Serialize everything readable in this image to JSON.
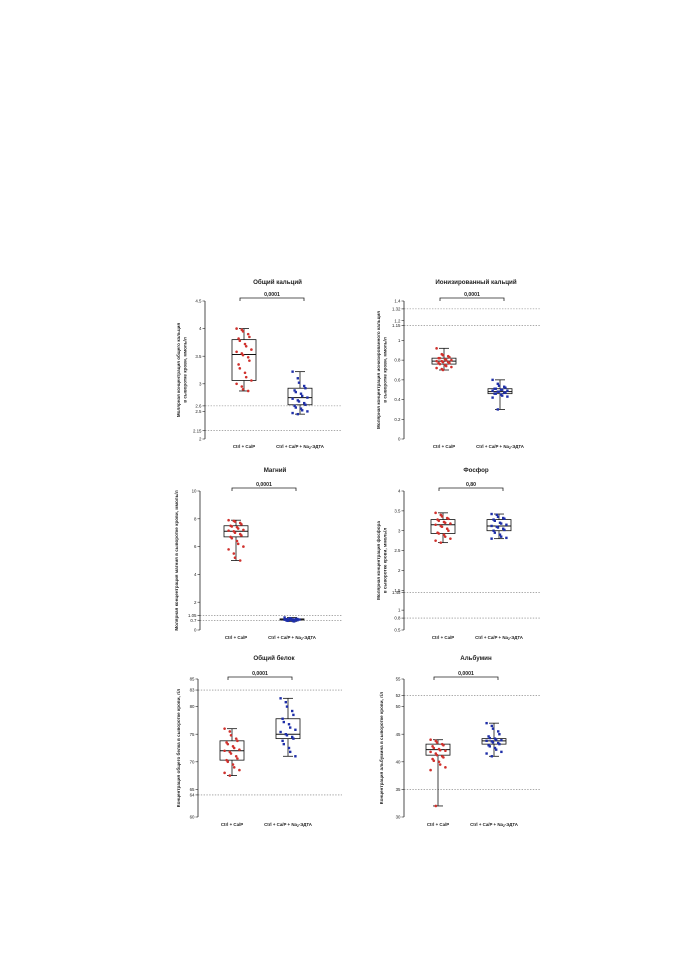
{
  "chart_data": [
    {
      "type": "box",
      "title": "Общий кальций",
      "ylabel": "Молярная концентрация общего кальция\nв сыворотке крови, ммоль/л",
      "ylim": [
        2.0,
        4.5
      ],
      "yticks": [
        2.0,
        2.15,
        2.5,
        2.6,
        3.0,
        3.5,
        4.0,
        4.5
      ],
      "reference_lines": [
        2.15,
        2.6
      ],
      "categories": [
        "Ctrl + Ca/P",
        "Ctrl + Ca/P + Na2-ЭДТА"
      ],
      "significance": "0,0001",
      "series": [
        {
          "color": "#d0312d",
          "marker": "circle",
          "box": {
            "whisker_low": 2.87,
            "q1": 3.06,
            "median": 3.53,
            "q3": 3.8,
            "whisker_high": 4.0
          },
          "points": [
            4.0,
            3.98,
            3.95,
            3.9,
            3.85,
            3.82,
            3.78,
            3.72,
            3.68,
            3.62,
            3.58,
            3.55,
            3.52,
            3.48,
            3.42,
            3.35,
            3.28,
            3.2,
            3.12,
            3.06,
            3.0,
            2.95,
            2.9,
            2.87
          ]
        },
        {
          "color": "#1f2fa8",
          "marker": "square",
          "box": {
            "whisker_low": 2.45,
            "q1": 2.62,
            "median": 2.75,
            "q3": 2.92,
            "whisker_high": 3.22
          },
          "points": [
            3.22,
            3.1,
            3.02,
            2.96,
            2.92,
            2.88,
            2.85,
            2.82,
            2.78,
            2.75,
            2.73,
            2.7,
            2.68,
            2.65,
            2.62,
            2.6,
            2.57,
            2.55,
            2.52,
            2.5,
            2.47,
            2.45
          ]
        }
      ]
    },
    {
      "type": "box",
      "title": "Ионизированный кальций",
      "ylabel": "Молярная концентрация ионизированного кальция\nв сыворотке крови, ммоль/л",
      "ylim": [
        0.0,
        1.4
      ],
      "yticks": [
        0.0,
        0.2,
        0.4,
        0.6,
        0.8,
        1.0,
        1.15,
        1.2,
        1.32,
        1.4
      ],
      "reference_lines": [
        1.15,
        1.32
      ],
      "categories": [
        "Ctrl + Ca/P",
        "Ctrl + Ca/P + Na2-ЭДТА"
      ],
      "significance": "0,0001",
      "series": [
        {
          "color": "#d0312d",
          "marker": "circle",
          "box": {
            "whisker_low": 0.7,
            "q1": 0.76,
            "median": 0.79,
            "q3": 0.82,
            "whisker_high": 0.92
          },
          "points": [
            0.92,
            0.86,
            0.85,
            0.84,
            0.83,
            0.82,
            0.82,
            0.81,
            0.8,
            0.8,
            0.79,
            0.79,
            0.78,
            0.78,
            0.77,
            0.77,
            0.76,
            0.75,
            0.74,
            0.73,
            0.72,
            0.71,
            0.7
          ]
        },
        {
          "color": "#1f2fa8",
          "marker": "square",
          "box": {
            "whisker_low": 0.3,
            "q1": 0.46,
            "median": 0.48,
            "q3": 0.51,
            "whisker_high": 0.6
          },
          "points": [
            0.6,
            0.56,
            0.54,
            0.53,
            0.52,
            0.51,
            0.51,
            0.5,
            0.5,
            0.49,
            0.49,
            0.48,
            0.48,
            0.47,
            0.47,
            0.46,
            0.46,
            0.45,
            0.44,
            0.43,
            0.42,
            0.3
          ]
        }
      ]
    },
    {
      "type": "box",
      "title": "Магний",
      "ylabel": "Молярная концентрация магния в сыворотке крови, ммоль/л",
      "ylim": [
        0,
        10
      ],
      "yticks": [
        0,
        0.7,
        1.05,
        2,
        4,
        6,
        8,
        10
      ],
      "reference_lines": [
        0.7,
        1.05
      ],
      "categories": [
        "Ctrl + Ca/P",
        "Ctrl + Ca/P + Na2-ЭДТА"
      ],
      "significance": "0,0001",
      "series": [
        {
          "color": "#d0312d",
          "marker": "circle",
          "box": {
            "whisker_low": 5.0,
            "q1": 6.7,
            "median": 7.1,
            "q3": 7.5,
            "whisker_high": 7.9
          },
          "points": [
            7.9,
            7.85,
            7.8,
            7.7,
            7.6,
            7.5,
            7.45,
            7.4,
            7.3,
            7.2,
            7.15,
            7.1,
            7.0,
            6.9,
            6.8,
            6.7,
            6.6,
            6.4,
            6.2,
            6.0,
            5.8,
            5.5,
            5.2,
            5.0
          ]
        },
        {
          "color": "#1f2fa8",
          "marker": "square",
          "box": {
            "whisker_low": 0.62,
            "q1": 0.72,
            "median": 0.75,
            "q3": 0.8,
            "whisker_high": 0.9
          },
          "points": [
            0.9,
            0.85,
            0.82,
            0.8,
            0.79,
            0.78,
            0.77,
            0.76,
            0.75,
            0.75,
            0.74,
            0.73,
            0.72,
            0.71,
            0.7,
            0.68,
            0.66,
            0.64,
            0.62
          ]
        }
      ]
    },
    {
      "type": "box",
      "title": "Фосфор",
      "ylabel": "Молярная концентрация фосфора\nв сыворотке крови, ммоль/л",
      "ylim": [
        0.5,
        4.0
      ],
      "yticks": [
        0.5,
        0.8,
        1.0,
        1.45,
        1.5,
        2.0,
        2.5,
        3.0,
        3.5,
        4.0
      ],
      "reference_lines": [
        0.8,
        1.45
      ],
      "categories": [
        "Ctrl + Ca/P",
        "Ctrl + Ca/P + Na2-ЭДТА"
      ],
      "significance": "0,80",
      "series": [
        {
          "color": "#d0312d",
          "marker": "circle",
          "box": {
            "whisker_low": 2.7,
            "q1": 2.93,
            "median": 3.15,
            "q3": 3.28,
            "whisker_high": 3.45
          },
          "points": [
            3.45,
            3.4,
            3.36,
            3.32,
            3.3,
            3.28,
            3.25,
            3.22,
            3.2,
            3.18,
            3.15,
            3.12,
            3.1,
            3.05,
            3.0,
            2.95,
            2.93,
            2.9,
            2.85,
            2.8,
            2.75,
            2.7
          ]
        },
        {
          "color": "#1f2fa8",
          "marker": "square",
          "box": {
            "whisker_low": 2.8,
            "q1": 3.0,
            "median": 3.12,
            "q3": 3.28,
            "whisker_high": 3.42
          },
          "points": [
            3.42,
            3.4,
            3.35,
            3.32,
            3.3,
            3.28,
            3.25,
            3.2,
            3.18,
            3.15,
            3.12,
            3.1,
            3.08,
            3.05,
            3.02,
            3.0,
            2.95,
            2.9,
            2.85,
            2.82,
            2.8
          ]
        }
      ]
    },
    {
      "type": "box",
      "title": "Общий белок",
      "ylabel": "Концентрация общего белка в сыворотке крови, г/л",
      "ylim": [
        60,
        85
      ],
      "yticks": [
        60,
        64,
        65,
        70,
        75,
        80,
        83,
        85
      ],
      "reference_lines": [
        64,
        83
      ],
      "categories": [
        "Ctrl + Ca/P",
        "Ctrl + Ca/P + Na2-ЭДТА"
      ],
      "significance": "0,0001",
      "series": [
        {
          "color": "#d0312d",
          "marker": "circle",
          "box": {
            "whisker_low": 67.5,
            "q1": 70.3,
            "median": 72.0,
            "q3": 73.8,
            "whisker_high": 76.0
          },
          "points": [
            76.0,
            75.5,
            74.8,
            74.2,
            73.8,
            73.5,
            73.2,
            72.8,
            72.5,
            72.2,
            72.0,
            71.8,
            71.5,
            71.0,
            70.6,
            70.3,
            70.0,
            69.5,
            69.0,
            68.5,
            68.0,
            67.5
          ]
        },
        {
          "color": "#1f2fa8",
          "marker": "square",
          "box": {
            "whisker_low": 71.0,
            "q1": 74.2,
            "median": 75.0,
            "q3": 77.8,
            "whisker_high": 81.5
          },
          "points": [
            81.5,
            80.8,
            80.0,
            79.2,
            78.5,
            77.8,
            77.2,
            76.8,
            76.2,
            75.8,
            75.4,
            75.0,
            74.8,
            74.5,
            74.2,
            73.8,
            73.2,
            72.5,
            71.8,
            71.0
          ]
        }
      ]
    },
    {
      "type": "box",
      "title": "Альбумин",
      "ylabel": "Концентрация альбумина в сыворотке крови, г/л",
      "ylim": [
        30,
        55
      ],
      "yticks": [
        30,
        35,
        40,
        45,
        50,
        52,
        55
      ],
      "reference_lines": [
        35,
        52
      ],
      "categories": [
        "Ctrl + Ca/P",
        "Ctrl + Ca/P + Na2-ЭДТА"
      ],
      "significance": "0,0001",
      "series": [
        {
          "color": "#d0312d",
          "marker": "circle",
          "box": {
            "whisker_low": 32.0,
            "q1": 41.2,
            "median": 42.2,
            "q3": 43.2,
            "whisker_high": 44.0
          },
          "points": [
            44.0,
            43.8,
            43.5,
            43.2,
            43.0,
            42.8,
            42.5,
            42.3,
            42.1,
            42.0,
            41.8,
            41.5,
            41.2,
            41.0,
            40.8,
            40.5,
            40.2,
            40.0,
            39.5,
            39.0,
            38.5,
            32.0
          ]
        },
        {
          "color": "#1f2fa8",
          "marker": "square",
          "box": {
            "whisker_low": 41.0,
            "q1": 43.2,
            "median": 43.8,
            "q3": 44.2,
            "whisker_high": 47.0
          },
          "points": [
            47.0,
            46.5,
            46.0,
            45.5,
            45.0,
            44.6,
            44.3,
            44.2,
            44.0,
            43.9,
            43.8,
            43.7,
            43.5,
            43.4,
            43.2,
            43.0,
            42.8,
            42.5,
            42.2,
            41.8,
            41.5,
            41.0
          ]
        }
      ]
    }
  ]
}
